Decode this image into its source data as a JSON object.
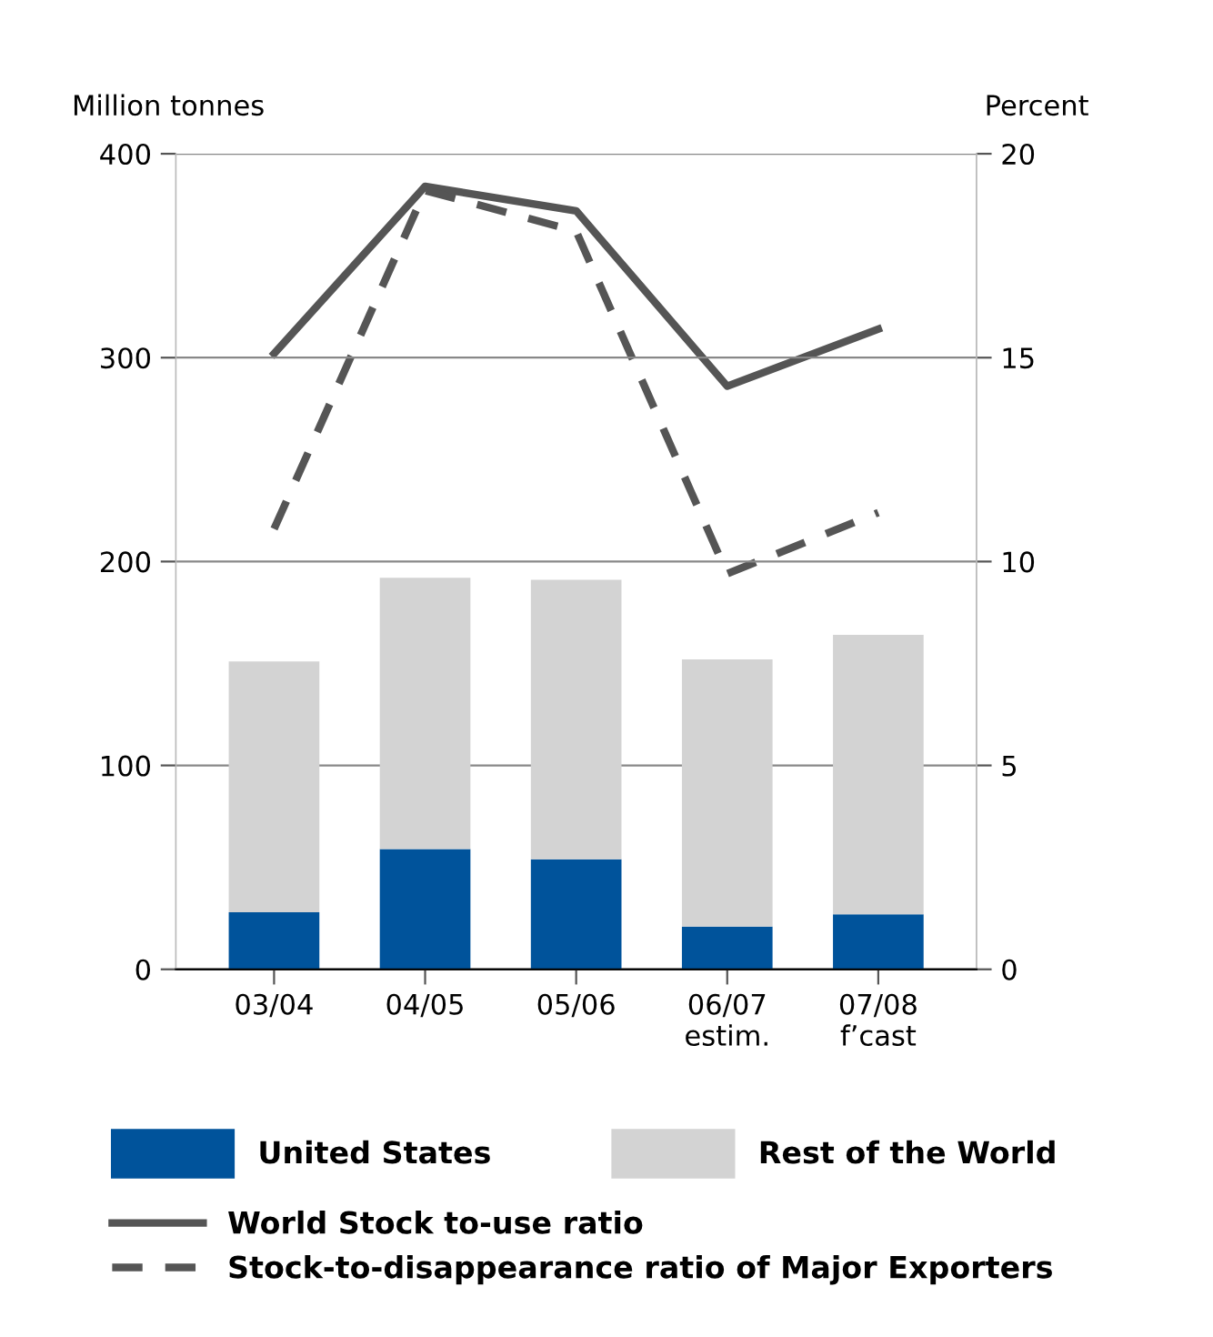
{
  "chart_data": {
    "type": "bar",
    "stacked": true,
    "ylabel": "Million tonnes",
    "y2label": "Percent",
    "categories": [
      "03/04",
      "04/05",
      "05/06",
      "06/07\nestim.",
      "07/08\nf’cast"
    ],
    "series": [
      {
        "name": "United States",
        "color": "#00539b",
        "values": [
          28,
          59,
          54,
          21,
          27
        ]
      },
      {
        "name": "Rest of the World",
        "color": "#d3d3d3",
        "values": [
          123,
          133,
          137,
          131,
          137
        ]
      },
      {
        "name": "World Stock to-use ratio",
        "type": "line",
        "axis": "y2",
        "color": "#555555",
        "line_style": "solid",
        "values": [
          15.1,
          19.2,
          18.6,
          14.3,
          15.7
        ]
      },
      {
        "name": "Stock-to-disappearance ratio of Major Exporters",
        "type": "line",
        "axis": "y2",
        "color": "#555555",
        "line_style": "dashed",
        "values": [
          10.8,
          19.1,
          18.1,
          9.7,
          11.2
        ]
      }
    ],
    "ylim": [
      0,
      400
    ],
    "yticks": [
      0,
      100,
      200,
      300,
      400
    ],
    "y2lim": [
      0,
      20
    ],
    "y2ticks": [
      0,
      5,
      10,
      15,
      20
    ],
    "grid": "y",
    "legend": "bottom"
  }
}
